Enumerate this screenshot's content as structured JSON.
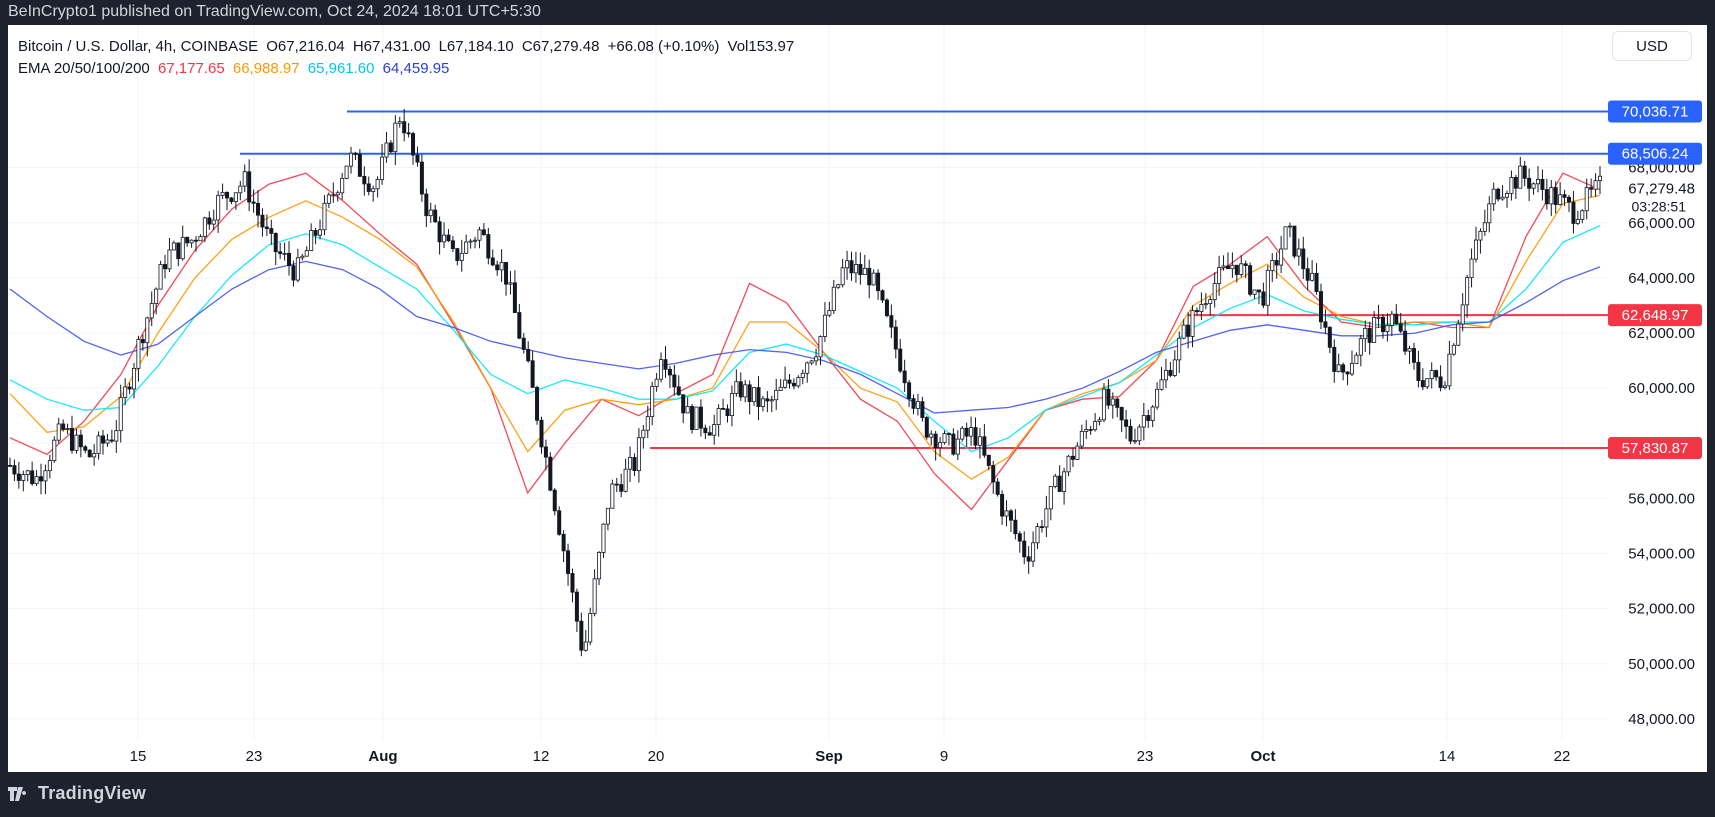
{
  "header": {
    "published_text": "BeInCrypto1 published on TradingView.com, Oct 24, 2024 18:01 UTC+5:30"
  },
  "legend": {
    "symbol": "Bitcoin / U.S. Dollar, 4h, COINBASE",
    "open": "O67,216.04",
    "high": "H67,431.00",
    "low": "L67,184.10",
    "close": "C67,279.48",
    "change": "+66.08 (+0.10%)",
    "volume": "Vol153.97",
    "ema_label": "EMA 20/50/100/200",
    "ema_values": [
      "67,177.65",
      "66,988.97",
      "65,961.60",
      "64,459.95"
    ]
  },
  "currency_button": "USD",
  "footer": {
    "brand": "TradingView"
  },
  "colors": {
    "ema20": "#f23645",
    "ema50": "#ff9800",
    "ema100": "#00e5ff",
    "ema200": "#3f51f5",
    "resistance": "#2962ff",
    "support": "#f23645",
    "candles": "#131722"
  },
  "chart_data": {
    "type": "candlestick",
    "title": "",
    "xlabel": "",
    "ylabel": "",
    "ylim": [
      46800,
      71000
    ],
    "x_tick_labels": [
      "15",
      "23",
      "Aug",
      "12",
      "20",
      "Sep",
      "9",
      "23",
      "Oct",
      "14",
      "22"
    ],
    "y_tick_labels": [
      "48,000.00",
      "50,000.00",
      "52,000.00",
      "54,000.00",
      "56,000.00",
      "58,000.00",
      "60,000.00",
      "62,000.00",
      "64,000.00",
      "66,000.00",
      "68,000.00"
    ],
    "y_tick_values": [
      48000,
      50000,
      52000,
      54000,
      56000,
      58000,
      60000,
      62000,
      64000,
      66000,
      68000
    ],
    "current_price": "67,279.48",
    "countdown": "03:28:51",
    "levels": [
      {
        "value": 70036.71,
        "label": "70,036.71",
        "type": "resistance",
        "from": "Jul 29"
      },
      {
        "value": 68506.24,
        "label": "68,506.24",
        "type": "resistance",
        "from": "Jul 22"
      },
      {
        "value": 62648.97,
        "label": "62,648.97",
        "type": "support",
        "from": "Sep 27"
      },
      {
        "value": 57830.87,
        "label": "57,830.87",
        "type": "support",
        "from": "Aug 19"
      }
    ],
    "series": [
      {
        "name": "EMA 20",
        "values": [
          58200,
          57600,
          58800,
          60500,
          63000,
          65000,
          66500,
          67400,
          67800,
          66800,
          65600,
          64500,
          62300,
          60000,
          56200,
          58000,
          59600,
          59000,
          59800,
          60500,
          63800,
          63100,
          61300,
          59600,
          58800,
          56900,
          55600,
          57400,
          59200,
          59600,
          59700,
          61000,
          63700,
          64500,
          65500,
          63700,
          62400,
          62200,
          62400,
          62200,
          62200,
          65500,
          67800,
          67200
        ]
      },
      {
        "name": "EMA 50",
        "values": [
          59800,
          58400,
          58600,
          59700,
          62000,
          64000,
          65400,
          66200,
          66800,
          66200,
          65400,
          64400,
          62400,
          60000,
          57700,
          59200,
          59600,
          59400,
          59600,
          60000,
          62400,
          62400,
          61300,
          60000,
          59500,
          57700,
          56700,
          57500,
          59200,
          59800,
          60200,
          61000,
          63000,
          63800,
          64500,
          63300,
          62600,
          62300,
          62400,
          62400,
          62200,
          64600,
          66700,
          67000
        ]
      },
      {
        "name": "EMA 100",
        "values": [
          60300,
          59600,
          59200,
          59300,
          60800,
          62600,
          64100,
          65200,
          65600,
          65200,
          64400,
          63600,
          62100,
          60500,
          59800,
          60300,
          60000,
          59600,
          59600,
          59900,
          61300,
          61600,
          61200,
          60600,
          60000,
          58800,
          57700,
          58200,
          59200,
          59700,
          60200,
          61200,
          62200,
          62900,
          63400,
          62800,
          62500,
          62300,
          62300,
          62400,
          62400,
          63600,
          65300,
          65900
        ]
      },
      {
        "name": "EMA 200",
        "values": [
          63600,
          62600,
          61700,
          61200,
          61600,
          62600,
          63600,
          64300,
          64600,
          64300,
          63600,
          62600,
          62200,
          61700,
          61400,
          61100,
          60900,
          60700,
          60900,
          61200,
          61400,
          61300,
          61000,
          60500,
          59800,
          59100,
          59200,
          59300,
          59600,
          60000,
          60600,
          61300,
          61700,
          62100,
          62300,
          62100,
          61900,
          61900,
          62000,
          62300,
          62400,
          63100,
          63900,
          64400
        ]
      }
    ],
    "candles_close": [
      57200,
      56700,
      58500,
      57500,
      58400,
      61800,
      64800,
      65400,
      66800,
      67500,
      65200,
      64200,
      66200,
      68400,
      67300,
      70000,
      66500,
      64700,
      65700,
      64200,
      60100,
      55400,
      50300,
      56200,
      57300,
      61500,
      59000,
      58600,
      60000,
      59300,
      60300,
      61600,
      64400,
      64100,
      61400,
      58700,
      57900,
      58400,
      55800,
      53900,
      56200,
      58000,
      59600,
      58200,
      59800,
      61900,
      63600,
      64600,
      63200,
      65700,
      63700,
      60400,
      61900,
      62600,
      60400,
      60300,
      64400,
      67200,
      67700,
      67100,
      66400,
      67300
    ]
  }
}
